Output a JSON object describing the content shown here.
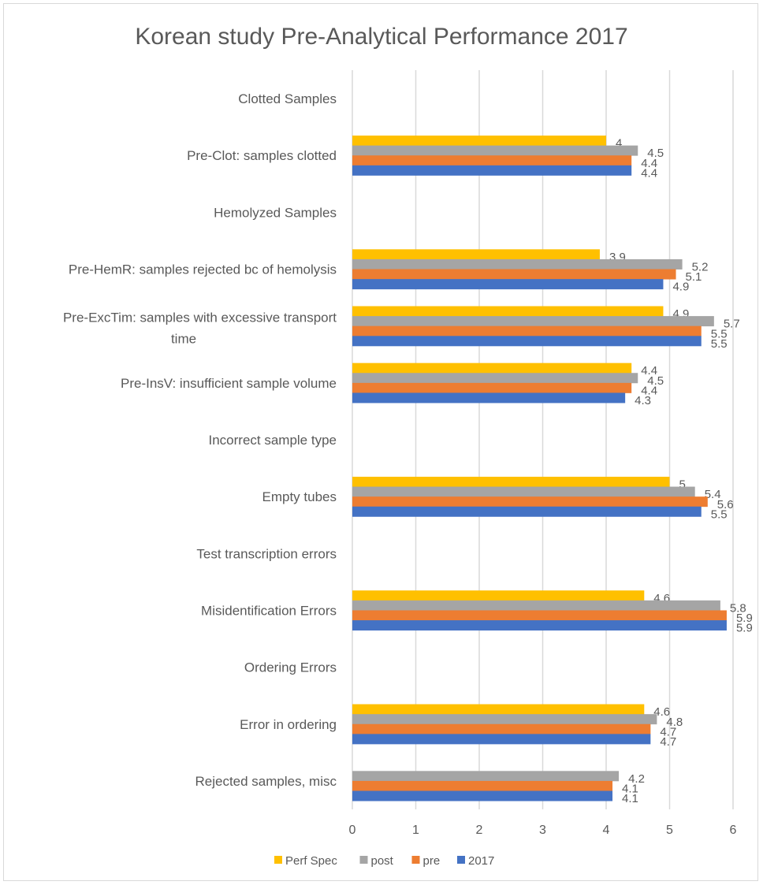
{
  "chart_data": {
    "type": "bar",
    "orientation": "horizontal",
    "title": "Korean study Pre-Analytical Performance 2017",
    "xlabel": "",
    "ylabel": "",
    "xlim": [
      0,
      6
    ],
    "x_ticks": [
      "0",
      "1",
      "2",
      "3",
      "4",
      "5",
      "6"
    ],
    "grid": "vertical",
    "legend_position": "bottom",
    "categories": [
      "Clotted Samples",
      "Pre-Clot: samples clotted",
      "Hemolyzed Samples",
      "Pre-HemR: samples rejected bc of hemolysis",
      "Pre-ExcTim: samples with excessive transport time",
      "Pre-InsV: insufficient sample volume",
      "Incorrect sample type",
      "Empty tubes",
      "Test transcription errors",
      "Misidentification Errors",
      "Ordering Errors",
      "Error in ordering",
      "Rejected samples, misc"
    ],
    "series": [
      {
        "name": "Perf Spec",
        "color": "#FFC000",
        "values": [
          null,
          4,
          null,
          3.9,
          4.9,
          4.4,
          null,
          5,
          null,
          4.6,
          null,
          4.6,
          null
        ]
      },
      {
        "name": "post",
        "color": "#A5A5A5",
        "values": [
          null,
          4.5,
          null,
          5.2,
          5.7,
          4.5,
          null,
          5.4,
          null,
          5.8,
          null,
          4.8,
          4.2
        ]
      },
      {
        "name": "pre",
        "color": "#ED7D31",
        "values": [
          null,
          4.4,
          null,
          5.1,
          5.5,
          4.4,
          null,
          5.6,
          null,
          5.9,
          null,
          4.7,
          4.1
        ]
      },
      {
        "name": "2017",
        "color": "#4472C4",
        "values": [
          null,
          4.4,
          null,
          4.9,
          5.5,
          4.3,
          null,
          5.5,
          null,
          5.9,
          null,
          4.7,
          4.1
        ]
      }
    ]
  }
}
